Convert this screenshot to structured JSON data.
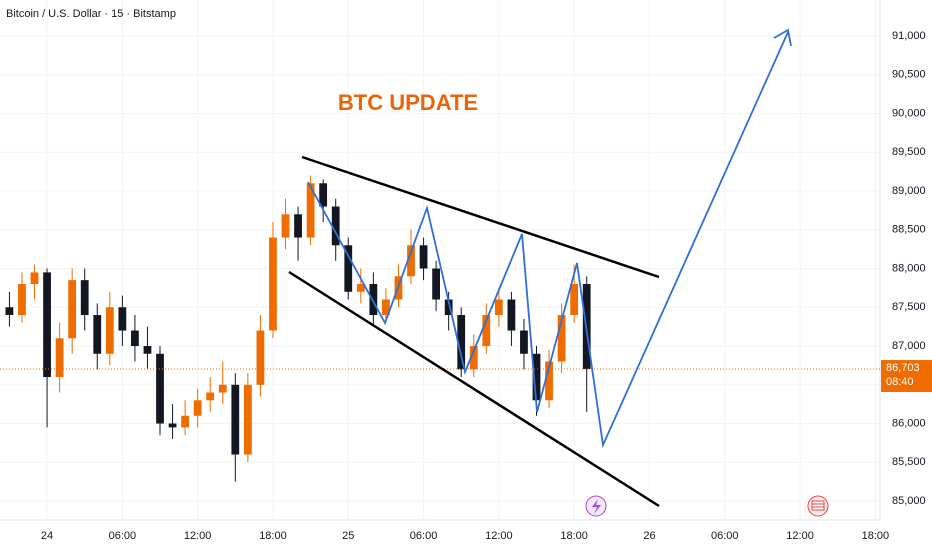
{
  "chart_data": {
    "type": "candlestick",
    "header": "Bitcoin / U.S. Dollar · 15 · Bitstamp",
    "annotation": "BTC UPDATE",
    "up_color": "#ef6c00",
    "down_color": "#131722",
    "x": [
      -3,
      -2,
      -1,
      0,
      1,
      2,
      3,
      4,
      5,
      6,
      7,
      8,
      9,
      10,
      11,
      12,
      13,
      14,
      15,
      16,
      17,
      18,
      19,
      20,
      21,
      22,
      23,
      24,
      25,
      26,
      27,
      28,
      29,
      30,
      31,
      32,
      33,
      34,
      35,
      36,
      37,
      38,
      39,
      40,
      41,
      42,
      43
    ],
    "open": [
      87500,
      87400,
      87800,
      87950,
      86600,
      87100,
      87850,
      87400,
      86900,
      87500,
      87200,
      87000,
      86900,
      86000,
      85950,
      86100,
      86300,
      86400,
      86500,
      85600,
      86500,
      87200,
      88400,
      88700,
      88400,
      89100,
      88800,
      88300,
      87700,
      87800,
      87400,
      87600,
      87900,
      88300,
      88000,
      87600,
      87400,
      86700,
      87000,
      87400,
      87600,
      87200,
      86900,
      86300,
      86800,
      87400,
      87800
    ],
    "high": [
      87700,
      87950,
      88050,
      88000,
      87300,
      88000,
      88000,
      87550,
      87700,
      87650,
      87400,
      87250,
      87000,
      86250,
      86300,
      86450,
      86600,
      86800,
      86650,
      86650,
      87400,
      88600,
      88900,
      88800,
      89200,
      89150,
      88900,
      88400,
      88000,
      87950,
      87750,
      88050,
      88500,
      88400,
      88100,
      87700,
      87500,
      87150,
      87550,
      87750,
      87700,
      87350,
      87000,
      86950,
      87550,
      88050,
      87900
    ],
    "low": [
      87250,
      87300,
      87600,
      85950,
      86400,
      86900,
      87200,
      86700,
      86750,
      87000,
      86800,
      86700,
      85850,
      85800,
      85850,
      85950,
      86150,
      86250,
      85250,
      85500,
      86350,
      87100,
      88250,
      88100,
      88300,
      88600,
      88100,
      87600,
      87550,
      87250,
      87300,
      87500,
      87800,
      87850,
      87450,
      87200,
      86600,
      86600,
      86900,
      87250,
      87000,
      86700,
      86100,
      86200,
      86650,
      87300,
      86150
    ],
    "close": [
      87400,
      87800,
      87950,
      86600,
      87100,
      87850,
      87400,
      86900,
      87500,
      87200,
      87000,
      86900,
      86000,
      85950,
      86100,
      86300,
      86400,
      86500,
      85600,
      86500,
      87200,
      88400,
      88700,
      88400,
      89100,
      88800,
      88300,
      87700,
      87800,
      87400,
      87600,
      87900,
      88300,
      88000,
      87600,
      87400,
      86700,
      87000,
      87400,
      87600,
      87200,
      86900,
      86300,
      86800,
      87400,
      87800,
      86703
    ],
    "price_label": "86,703",
    "countdown": "08:40",
    "xlim": [
      -3.75,
      66.37
    ],
    "xticks": [
      {
        "value": 0,
        "label": "24"
      },
      {
        "value": 6,
        "label": "06:00"
      },
      {
        "value": 12,
        "label": "12:00"
      },
      {
        "value": 18,
        "label": "18:00"
      },
      {
        "value": 24,
        "label": "25"
      },
      {
        "value": 30,
        "label": "06:00"
      },
      {
        "value": 36,
        "label": "12:00"
      },
      {
        "value": 42,
        "label": "18:00"
      },
      {
        "value": 48,
        "label": "26"
      },
      {
        "value": 54,
        "label": "06:00"
      },
      {
        "value": 60,
        "label": "12:00"
      },
      {
        "value": 66,
        "label": "18:00"
      }
    ],
    "ylim": [
      84755,
      91465
    ],
    "yticks": [
      {
        "value": 85000,
        "label": "85,000"
      },
      {
        "value": 85500,
        "label": "85,500"
      },
      {
        "value": 86000,
        "label": "86,000"
      },
      {
        "value": 86500,
        "label": "86,500"
      },
      {
        "value": 87000,
        "label": "87,000"
      },
      {
        "value": 87500,
        "label": "87,500"
      },
      {
        "value": 88000,
        "label": "88,000"
      },
      {
        "value": 88500,
        "label": "88,500"
      },
      {
        "value": 89000,
        "label": "89,000"
      },
      {
        "value": 89500,
        "label": "89,500"
      },
      {
        "value": 90000,
        "label": "90,000"
      },
      {
        "value": 90500,
        "label": "90,500"
      },
      {
        "value": 91000,
        "label": "91,000"
      }
    ],
    "grid": true
  }
}
